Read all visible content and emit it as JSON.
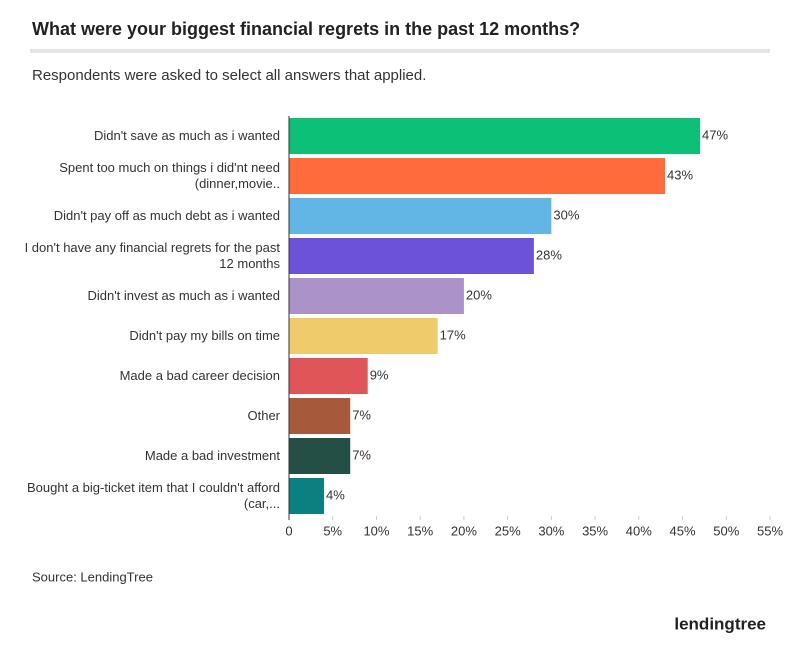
{
  "chart_data": {
    "type": "bar",
    "orientation": "horizontal",
    "title": "What were your biggest financial regrets in the past 12 months?",
    "subtitle": "Respondents were asked to select all answers that applied.",
    "source": "Source: LendingTree",
    "logo": "lendingtree",
    "categories": [
      "Didn't save as much as i wanted",
      "Spent too much on things i did'nt need (dinner,movie..",
      "Didn't pay off as much debt as i wanted",
      "I don't have any financial regrets for the past 12 months",
      "Didn't invest as much as i wanted",
      "Didn't pay my bills on time",
      "Made a bad career decision",
      "Other",
      "Made a bad investment",
      "Bought a big-ticket item that I couldn't afford (car,..."
    ],
    "values": [
      47,
      43,
      30,
      28,
      20,
      17,
      9,
      7,
      7,
      4
    ],
    "value_labels": [
      "47%",
      "43%",
      "30%",
      "28%",
      "20%",
      "17%",
      "9%",
      "7%",
      "7%",
      "4%"
    ],
    "colors": [
      "#0cc177",
      "#ff6b3b",
      "#62b6e6",
      "#6b52d8",
      "#ab93c9",
      "#f0cb6b",
      "#e05557",
      "#a65a3b",
      "#234f45",
      "#0a8080"
    ],
    "xlim": [
      0,
      55
    ],
    "xticks": [
      0,
      {
        "value": 5,
        "label": "5%"
      },
      {
        "value": 10,
        "label": "10%"
      },
      {
        "value": 15,
        "label": "15%"
      },
      {
        "value": 20,
        "label": "20%"
      },
      {
        "value": 25,
        "label": "25%"
      },
      {
        "value": 30,
        "label": "30%"
      },
      {
        "value": 35,
        "label": "35%"
      },
      {
        "value": 40,
        "label": "40%"
      },
      {
        "value": 45,
        "label": "45%"
      },
      {
        "value": 50,
        "label": "50%"
      },
      {
        "value": 55,
        "label": "55%"
      }
    ],
    "grid": false
  }
}
